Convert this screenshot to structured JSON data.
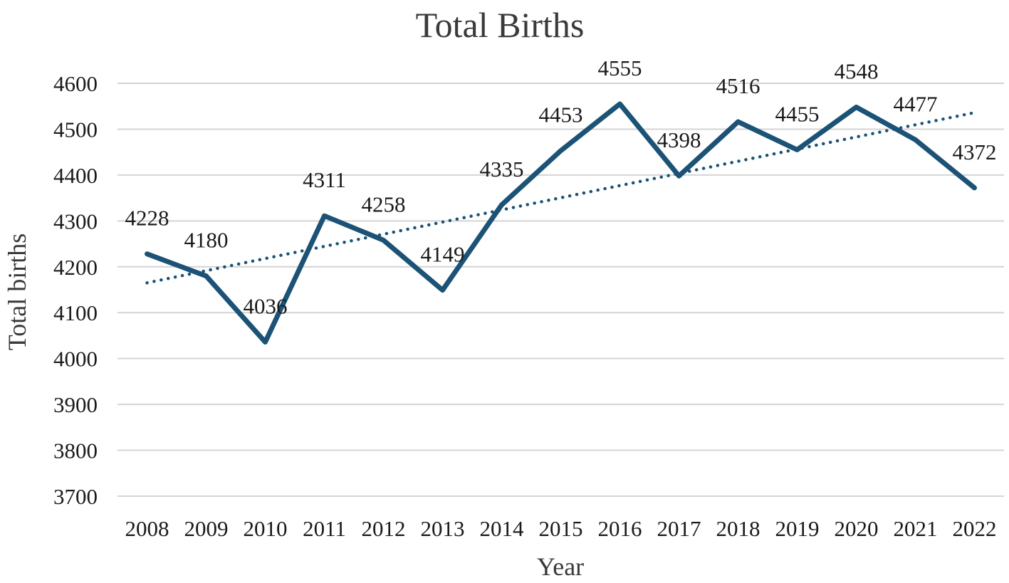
{
  "chart_data": {
    "type": "line",
    "title": "Total Births",
    "xlabel": "Year",
    "ylabel": "Total births",
    "categories": [
      "2008",
      "2009",
      "2010",
      "2011",
      "2012",
      "2013",
      "2014",
      "2015",
      "2016",
      "2017",
      "2018",
      "2019",
      "2020",
      "2021",
      "2022"
    ],
    "series": [
      {
        "values": [
          4228,
          4180,
          4036,
          4311,
          4258,
          4149,
          4335,
          4453,
          4555,
          4398,
          4516,
          4455,
          4548,
          4477,
          4372
        ],
        "color": "#1b5276",
        "data_labels": [
          "4228",
          "4180",
          "4036",
          "4311",
          "4258",
          "4149",
          "4335",
          "4453",
          "4555",
          "4398",
          "4516",
          "4455",
          "4548",
          "4477",
          "4372"
        ]
      }
    ],
    "trendline": {
      "type": "linear",
      "style": "dotted",
      "color": "#1b5276",
      "start_value": 4165,
      "end_value": 4536
    },
    "ylim": [
      3700,
      4600
    ],
    "yticks": [
      3700,
      3800,
      3900,
      4000,
      4100,
      4200,
      4300,
      4400,
      4500,
      4600
    ],
    "grid": true,
    "legend": "none"
  }
}
